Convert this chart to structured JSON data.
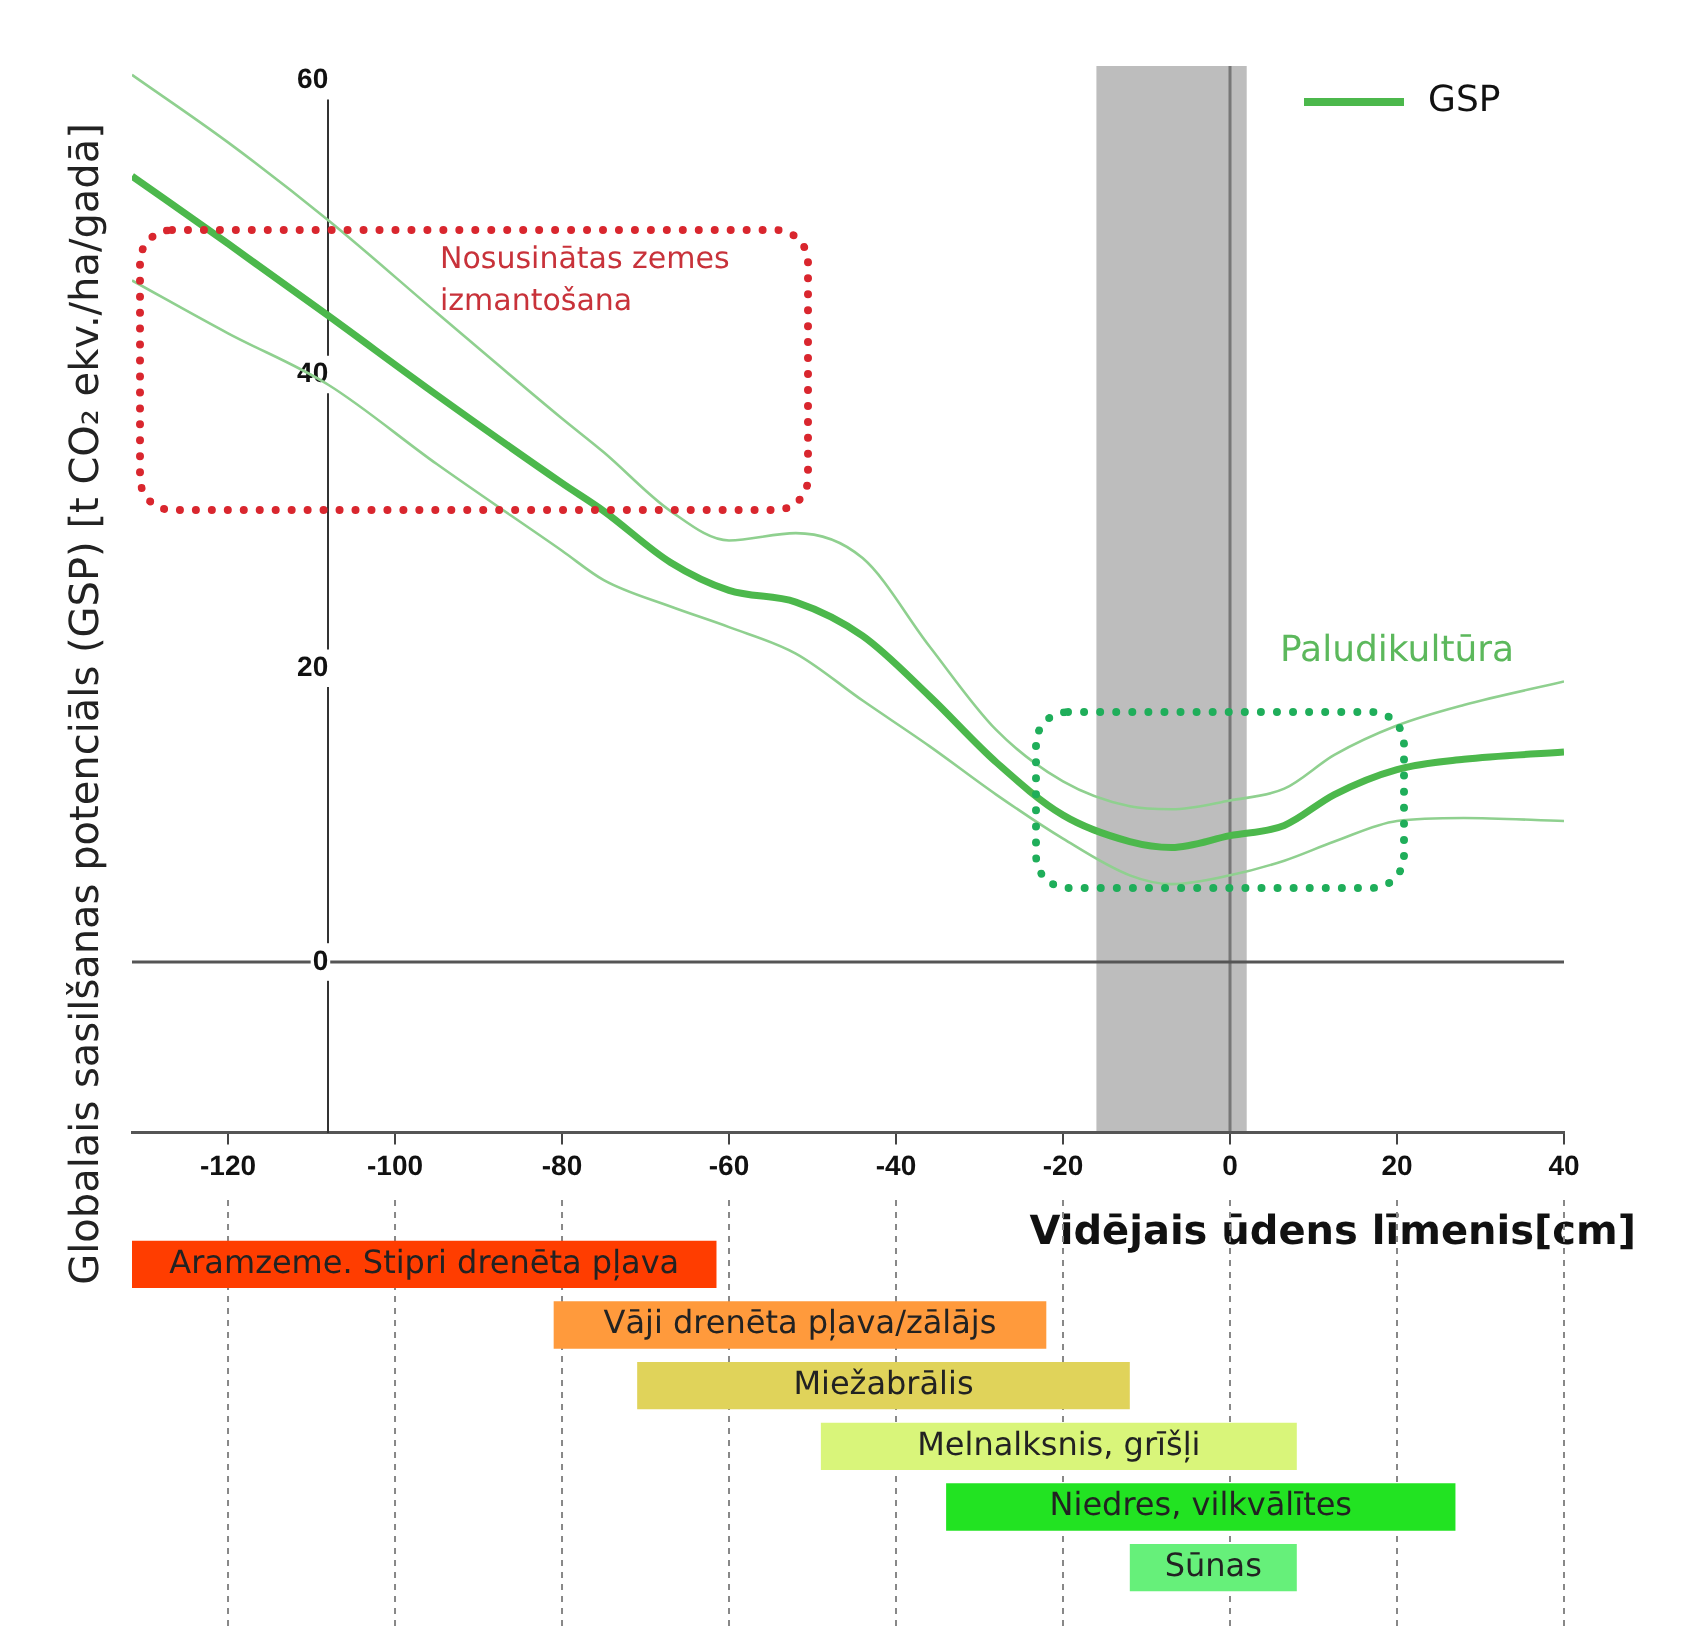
{
  "chart_data": [
    {
      "type": "line",
      "xlabel": "Vidējais ūdens līmenis[cm]",
      "ylabel": "Globalais sasilšanas potenciāls (GSP) [t CO₂ ekv./ha/gadā]",
      "annotations": [
        "Nosusinātas zemes izmantošana",
        "Paludikultūra"
      ],
      "x": [
        -131.5,
        -120,
        -108,
        -95,
        -80,
        -75,
        -67,
        -60,
        -52,
        -44,
        -36,
        -28,
        -20,
        -12,
        -7,
        0,
        6.5,
        12.5,
        20,
        28,
        40
      ],
      "series": [
        {
          "name": "GSP",
          "color": "#4cb84c",
          "values": [
            53.5,
            48.9,
            44,
            38.6,
            32.6,
            30.7,
            27.2,
            25.3,
            24.5,
            22.2,
            18.1,
            13.6,
            10,
            8.2,
            7.8,
            8.6,
            9.3,
            11.4,
            13.1,
            13.8,
            14.3
          ]
        },
        {
          "color": "#8fd08f",
          "values": [
            46.4,
            42.8,
            39.3,
            33.9,
            28,
            26,
            24.2,
            22.8,
            21,
            17.8,
            14.7,
            11.4,
            8.4,
            5.9,
            5.3,
            5.9,
            6.9,
            8.2,
            9.6,
            9.8,
            9.6
          ]
        },
        {
          "color": "#8fd08f",
          "values": [
            60.4,
            55.8,
            50.5,
            44.2,
            37,
            34.7,
            30.7,
            28.7,
            29.2,
            27.5,
            21.5,
            15.8,
            12.3,
            10.6,
            10.4,
            11,
            11.8,
            14.1,
            16.1,
            17.5,
            19.1
          ]
        }
      ],
      "xlim": [
        -131.5,
        40
      ],
      "ylim": [
        -11.6,
        61
      ],
      "xticks": [
        -120,
        -100,
        -80,
        -60,
        -40,
        -20,
        0,
        20,
        40
      ],
      "yticks": [
        0,
        20,
        40,
        60
      ],
      "legend": "top right",
      "marker": "none",
      "ref_lines": [
        {
          "axis": "x",
          "value": 0,
          "color": "#777777"
        },
        {
          "axis": "y",
          "value": 0,
          "color": "#555555"
        }
      ],
      "bands": [
        {
          "axis": "x",
          "from": -16,
          "to": 2,
          "color": "#bdbdbd"
        }
      ]
    },
    {
      "type": "bar",
      "orientation": "horizontal",
      "categories": [
        "Aramzeme. Stipri drenēta pļava",
        "Vāji drenēta pļava/zālājs",
        "Miežabrālis",
        "Melnalksnis, grīšļi",
        "Niedres, vilkvālītes",
        "Sūnas"
      ],
      "base": [
        -131.5,
        -81,
        -71,
        -49,
        -34,
        -12
      ],
      "values": [
        70,
        59,
        59,
        57,
        61,
        20
      ],
      "colors": [
        "#ff3d00",
        "#ff9a3c",
        "#e0d35a",
        "#d9f57a",
        "#22e322",
        "#66f07a"
      ],
      "xlim": [
        -131.5,
        40
      ],
      "xticks": [
        -120,
        -100,
        -80,
        -60,
        -40,
        -20,
        0,
        20,
        40
      ],
      "tick_labels": false,
      "grid": "x"
    }
  ]
}
